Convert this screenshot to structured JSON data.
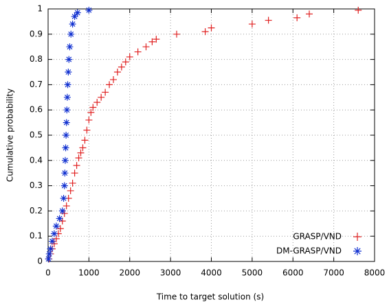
{
  "chart_data": {
    "type": "scatter",
    "xlabel": "Time to target solution (s)",
    "ylabel": "Cumulative probability",
    "xlim": [
      0,
      8000
    ],
    "ylim": [
      0,
      1
    ],
    "xticks": [
      0,
      1000,
      2000,
      3000,
      4000,
      5000,
      6000,
      7000,
      8000
    ],
    "yticks": [
      0,
      0.1,
      0.2,
      0.3,
      0.4,
      0.5,
      0.6,
      0.7,
      0.8,
      0.9,
      1
    ],
    "grid": true,
    "legend": "bottom-right",
    "series": [
      {
        "name": "GRASP/VND",
        "color": "#e02020",
        "marker": "plus",
        "x": [
          20,
          60,
          100,
          150,
          200,
          250,
          300,
          350,
          400,
          450,
          500,
          550,
          600,
          650,
          700,
          750,
          800,
          850,
          900,
          950,
          1000,
          1050,
          1100,
          1200,
          1300,
          1400,
          1500,
          1600,
          1700,
          1800,
          1900,
          2000,
          2200,
          2400,
          2550,
          2650,
          3150,
          3850,
          4000,
          5000,
          5400,
          6100,
          6400,
          7600
        ],
        "values": [
          0.01,
          0.03,
          0.05,
          0.07,
          0.09,
          0.11,
          0.13,
          0.16,
          0.19,
          0.22,
          0.25,
          0.28,
          0.31,
          0.35,
          0.38,
          0.41,
          0.43,
          0.45,
          0.48,
          0.52,
          0.56,
          0.59,
          0.61,
          0.63,
          0.65,
          0.67,
          0.7,
          0.72,
          0.75,
          0.77,
          0.79,
          0.81,
          0.83,
          0.85,
          0.87,
          0.88,
          0.9,
          0.91,
          0.925,
          0.94,
          0.955,
          0.965,
          0.98,
          0.995
        ]
      },
      {
        "name": "DM-GRASP/VND",
        "color": "#1030d0",
        "marker": "star",
        "x": [
          10,
          30,
          60,
          100,
          150,
          200,
          280,
          350,
          380,
          400,
          410,
          420,
          430,
          440,
          450,
          460,
          470,
          480,
          495,
          510,
          530,
          560,
          600,
          650,
          720,
          1000
        ],
        "values": [
          0.01,
          0.03,
          0.05,
          0.08,
          0.11,
          0.14,
          0.17,
          0.2,
          0.25,
          0.3,
          0.35,
          0.4,
          0.45,
          0.5,
          0.55,
          0.6,
          0.65,
          0.7,
          0.75,
          0.8,
          0.85,
          0.9,
          0.94,
          0.97,
          0.985,
          0.995
        ]
      }
    ]
  }
}
